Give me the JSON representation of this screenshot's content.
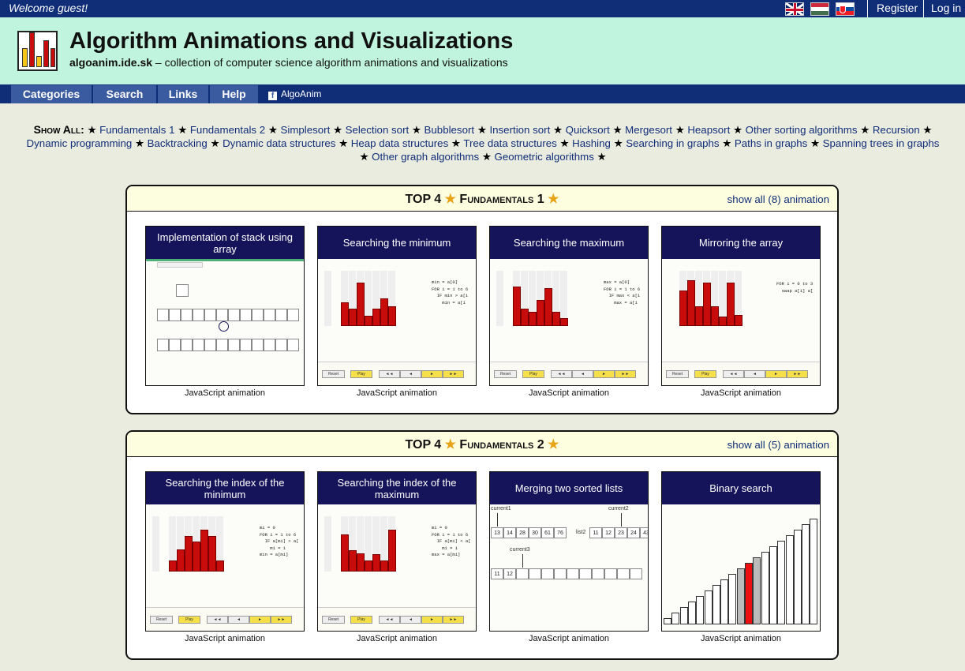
{
  "topbar": {
    "welcome": "Welcome guest!",
    "register": "Register",
    "login": "Log in",
    "flags": [
      "english-flag-icon",
      "hungarian-flag-icon",
      "slovak-flag-icon"
    ]
  },
  "header": {
    "title": "Algorithm Animations and Visualizations",
    "site": "algoanim.ide.sk",
    "subtitle": " – collection of computer science algorithm animations and visualizations"
  },
  "nav": {
    "items": [
      "Categories",
      "Search",
      "Links",
      "Help"
    ],
    "fb_label": "AlgoAnim"
  },
  "showall": {
    "label": "Show All:",
    "links": [
      "Fundamentals 1",
      "Fundamentals 2",
      "Simplesort",
      "Selection sort",
      "Bubblesort",
      "Insertion sort",
      "Quicksort",
      "Mergesort",
      "Heapsort",
      "Other sorting algorithms",
      "Recursion",
      "Dynamic programming",
      "Backtracking",
      "Dynamic data structures",
      "Heap data structures",
      "Tree data structures",
      "Hashing",
      "Searching in graphs",
      "Paths in graphs",
      "Spanning trees in graphs",
      "Other graph algorithms",
      "Geometric algorithms"
    ]
  },
  "panels": [
    {
      "top": "TOP 4",
      "name": "Fundamentals 1",
      "more": "show all (8) animation",
      "cards": [
        {
          "title": "Implementation of stack using array",
          "caption": "JavaScript animation"
        },
        {
          "title": "Searching the minimum",
          "caption": "JavaScript animation",
          "code": "min = a[0]\nFOR i = 1 to 6\n  IF min > a[i\n    min = a[i"
        },
        {
          "title": "Searching the maximum",
          "caption": "JavaScript animation",
          "code": "max = a[0]\nFOR i = 1 to 6\n  IF max < a[i\n    max = a[i"
        },
        {
          "title": "Mirroring the array",
          "caption": "JavaScript animation",
          "code": "FOR i = 0 to 3\n  swap a[i] a["
        }
      ]
    },
    {
      "top": "TOP 4",
      "name": "Fundamentals 2",
      "more": "show all (5) animation",
      "cards": [
        {
          "title": "Searching the index of the minimum",
          "caption": "JavaScript animation",
          "code": "mi = 0\nFOR i = 1 to 6\n  IF a[mi] > a[\n    mi = i\nmin = a[mi]"
        },
        {
          "title": "Searching the index of the maximum",
          "caption": "JavaScript animation",
          "code": "mi = 0\nFOR i = 1 to 6\n  IF a[mi] < a[\n    mi = i\nmax = a[mi]"
        },
        {
          "title": "Merging two sorted lists",
          "caption": "JavaScript animation",
          "list1": [
            "13",
            "14",
            "28",
            "30",
            "61",
            "76"
          ],
          "list2": [
            "11",
            "12",
            "23",
            "24",
            "43"
          ],
          "merged": [
            "11",
            "12"
          ],
          "labels": [
            "current1",
            "current2",
            "current3",
            "list2"
          ]
        },
        {
          "title": "Binary search",
          "caption": "JavaScript animation"
        }
      ]
    }
  ],
  "controls": {
    "reset": "Reset",
    "play": "Play",
    "first": "◄◄",
    "prev": "◄",
    "next": "►",
    "last": "►►"
  },
  "colors": {
    "topbar": "#102e78",
    "header": "#c0f4de",
    "card_title": "#15145a",
    "bar": "#c80c0c",
    "star": "#e8a317"
  }
}
